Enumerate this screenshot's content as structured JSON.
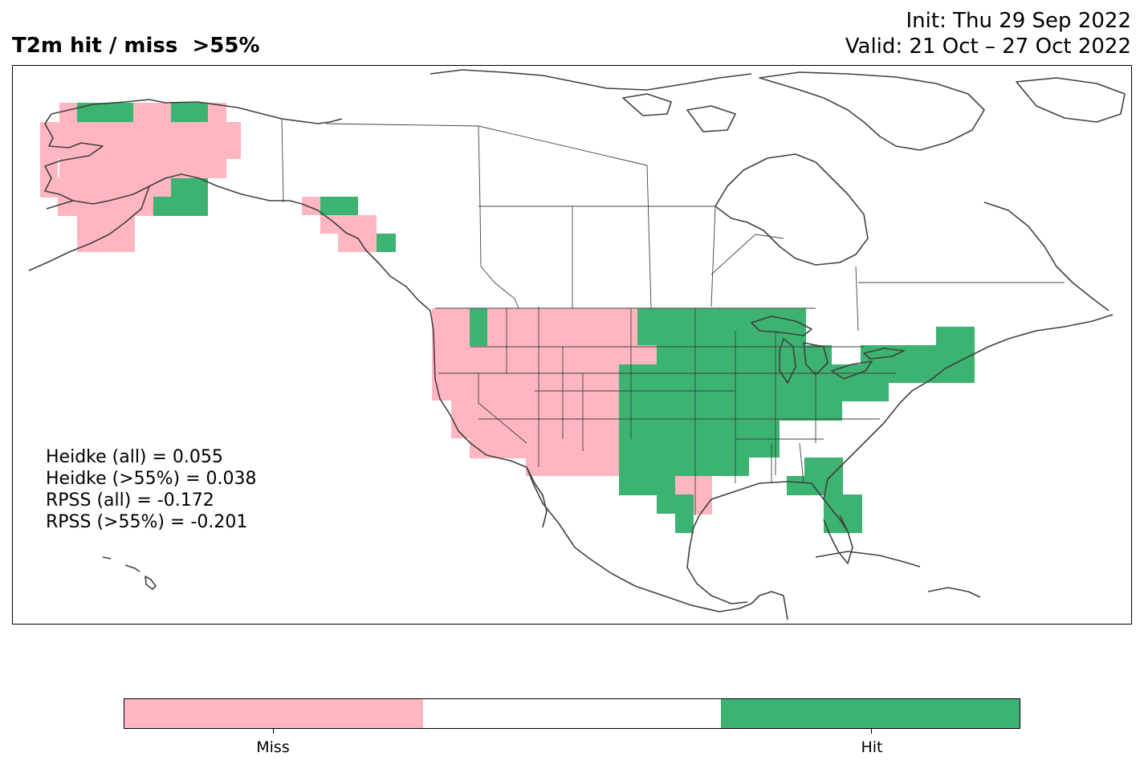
{
  "title": "T2m hit / miss  >55%",
  "init_label": "Init: Thu 29 Sep 2022",
  "valid_label": "Valid: 21 Oct – 27 Oct 2022",
  "stats": [
    "Heidke (all) = 0.055",
    "Heidke (>55%) = 0.038",
    "RPSS (all) = -0.172",
    "RPSS (>55%) = -0.201"
  ],
  "colors": {
    "miss": "#ffb6c1",
    "neutral": "#ffffff",
    "hit": "#3cb371",
    "coast": "#404040"
  },
  "legend": {
    "miss_label": "Miss",
    "hit_label": "Hit"
  }
}
